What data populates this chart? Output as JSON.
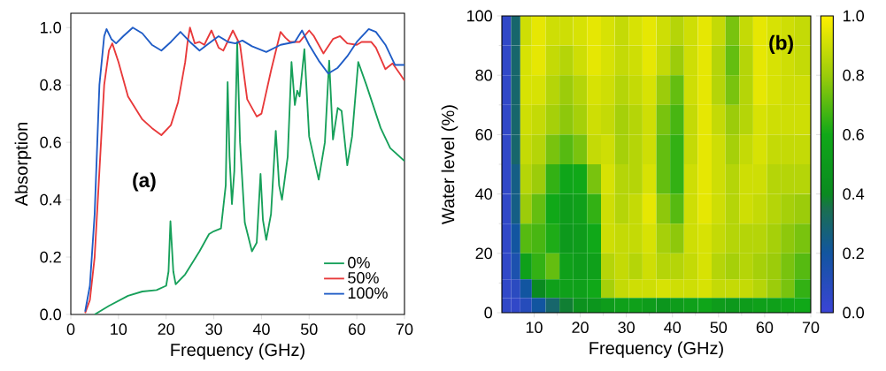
{
  "chart_data": [
    {
      "type": "line",
      "xlabel": "Frequency (GHz)",
      "ylabel": "Absorption",
      "xlim": [
        0,
        70
      ],
      "ylim": [
        0,
        1.05
      ],
      "xticks": [
        0,
        10,
        20,
        30,
        40,
        50,
        60,
        70
      ],
      "yticks": [
        {
          "value": 0,
          "label": "0.0"
        },
        {
          "value": 0.2,
          "label": "0.2"
        },
        {
          "value": 0.4,
          "label": "0.4"
        },
        {
          "value": 0.6,
          "label": "0.6"
        },
        {
          "value": 0.8,
          "label": "0.8"
        },
        {
          "value": 1,
          "label": "1.0"
        }
      ],
      "legend": "bottom right",
      "annotations": [
        "(a)"
      ],
      "series": [
        {
          "name": "0%",
          "color": "#17a05a",
          "x": [
            5,
            8,
            12,
            15,
            18,
            20,
            20.5,
            20.9,
            21.5,
            22,
            24,
            27,
            29,
            30,
            31.5,
            32.5,
            32.9,
            33.3,
            33.8,
            34.3,
            34.9,
            35.5,
            36.5,
            38,
            39,
            39.8,
            40.3,
            41,
            42,
            43,
            43.7,
            44.3,
            45.5,
            46.3,
            47,
            47.5,
            48,
            49,
            50,
            52,
            53.3,
            54.2,
            55,
            56,
            56.8,
            58,
            59,
            60.3,
            62,
            65,
            67,
            70
          ],
          "values": [
            0.0,
            0.03,
            0.065,
            0.08,
            0.085,
            0.1,
            0.15,
            0.325,
            0.15,
            0.105,
            0.14,
            0.22,
            0.28,
            0.29,
            0.3,
            0.45,
            0.81,
            0.55,
            0.385,
            0.5,
            0.95,
            0.6,
            0.32,
            0.22,
            0.25,
            0.49,
            0.33,
            0.26,
            0.35,
            0.64,
            0.45,
            0.4,
            0.55,
            0.88,
            0.73,
            0.78,
            0.76,
            0.925,
            0.62,
            0.47,
            0.6,
            0.885,
            0.61,
            0.72,
            0.71,
            0.52,
            0.62,
            0.88,
            0.8,
            0.65,
            0.58,
            0.535
          ]
        },
        {
          "name": "50%",
          "color": "#e8393a",
          "x": [
            3,
            4,
            5,
            6,
            7,
            8,
            8.7,
            10,
            12,
            15,
            17,
            19,
            21,
            22.5,
            24,
            24.5,
            25,
            26,
            27,
            28,
            29.5,
            31,
            32,
            34,
            35.5,
            37,
            39,
            40,
            42,
            44,
            45,
            46,
            48,
            49,
            50,
            51,
            53,
            55,
            56.5,
            58,
            60,
            61,
            63,
            64,
            66,
            67.5,
            69,
            70
          ],
          "values": [
            0.005,
            0.05,
            0.2,
            0.5,
            0.8,
            0.92,
            0.945,
            0.88,
            0.76,
            0.68,
            0.65,
            0.625,
            0.66,
            0.74,
            0.88,
            0.95,
            1.0,
            0.945,
            0.95,
            0.94,
            0.99,
            0.93,
            0.92,
            0.99,
            0.94,
            0.75,
            0.69,
            0.7,
            0.85,
            0.985,
            0.965,
            0.95,
            0.95,
            0.97,
            0.99,
            0.97,
            0.91,
            0.96,
            0.97,
            0.945,
            0.94,
            0.95,
            0.95,
            0.93,
            0.855,
            0.875,
            0.84,
            0.815
          ]
        },
        {
          "name": "100%",
          "color": "#1f5cc6",
          "x": [
            3,
            4,
            5,
            6,
            7,
            7.5,
            8.5,
            9.5,
            11,
            13,
            15,
            17,
            19,
            21,
            23,
            25,
            27,
            29,
            31,
            33,
            34.5,
            36,
            38,
            41,
            44,
            47,
            48.5,
            50,
            52,
            54,
            56,
            58,
            60,
            62.5,
            64,
            66,
            68,
            70
          ],
          "values": [
            0.01,
            0.1,
            0.35,
            0.8,
            0.97,
            0.995,
            0.96,
            0.945,
            0.97,
            1.0,
            0.98,
            0.94,
            0.92,
            0.95,
            0.985,
            0.95,
            0.92,
            0.945,
            0.97,
            0.95,
            0.945,
            0.955,
            0.935,
            0.915,
            0.94,
            0.95,
            0.99,
            0.94,
            0.885,
            0.84,
            0.86,
            0.9,
            0.95,
            0.995,
            0.985,
            0.94,
            0.87,
            0.87
          ]
        }
      ]
    },
    {
      "type": "heatmap",
      "xlabel": "Frequency (GHz)",
      "ylabel": "Water level (%)",
      "xlim": [
        3,
        70
      ],
      "ylim": [
        0,
        100
      ],
      "xticks": [
        10,
        20,
        30,
        40,
        50,
        60,
        70
      ],
      "yticks": [
        0,
        20,
        40,
        60,
        80,
        100
      ],
      "clim": [
        0,
        1
      ],
      "cticks": [
        {
          "value": 0,
          "label": "0.0"
        },
        {
          "value": 0.2,
          "label": "0.2"
        },
        {
          "value": 0.4,
          "label": "0.4"
        },
        {
          "value": 0.6,
          "label": "0.6"
        },
        {
          "value": 0.8,
          "label": "0.8"
        },
        {
          "value": 1,
          "label": "1.0"
        }
      ],
      "annotations": [
        "(b)"
      ],
      "x": [
        4,
        6,
        8,
        11,
        14,
        17,
        20,
        23,
        26,
        29,
        32,
        35,
        38,
        41,
        44,
        47,
        50,
        53,
        56,
        59,
        62,
        65,
        68
      ],
      "y": [
        95,
        85,
        75,
        65,
        55,
        45,
        35,
        25,
        15,
        7.5,
        2.5
      ],
      "cells": [
        [
          0.05,
          0.3,
          0.9,
          0.95,
          0.9,
          0.9,
          0.92,
          0.95,
          0.92,
          0.88,
          0.92,
          0.95,
          0.9,
          0.85,
          0.9,
          0.95,
          0.88,
          0.75,
          0.88,
          0.95,
          0.92,
          0.9,
          0.88
        ],
        [
          0.05,
          0.3,
          0.92,
          0.95,
          0.88,
          0.85,
          0.9,
          0.95,
          0.92,
          0.88,
          0.9,
          0.95,
          0.88,
          0.8,
          0.9,
          0.95,
          0.85,
          0.72,
          0.85,
          0.95,
          0.92,
          0.9,
          0.88
        ],
        [
          0.05,
          0.3,
          0.92,
          0.92,
          0.85,
          0.8,
          0.85,
          0.92,
          0.9,
          0.85,
          0.88,
          0.92,
          0.8,
          0.72,
          0.9,
          0.95,
          0.85,
          0.75,
          0.85,
          0.95,
          0.92,
          0.9,
          0.9
        ],
        [
          0.05,
          0.3,
          0.9,
          0.88,
          0.82,
          0.78,
          0.82,
          0.9,
          0.88,
          0.82,
          0.85,
          0.9,
          0.75,
          0.68,
          0.88,
          0.95,
          0.88,
          0.8,
          0.85,
          0.92,
          0.9,
          0.9,
          0.9
        ],
        [
          0.05,
          0.3,
          0.88,
          0.85,
          0.75,
          0.7,
          0.75,
          0.88,
          0.9,
          0.82,
          0.85,
          0.9,
          0.72,
          0.65,
          0.88,
          0.95,
          0.9,
          0.82,
          0.88,
          0.92,
          0.88,
          0.88,
          0.88
        ],
        [
          0.05,
          0.25,
          0.85,
          0.8,
          0.65,
          0.58,
          0.6,
          0.75,
          0.92,
          0.85,
          0.85,
          0.92,
          0.72,
          0.65,
          0.9,
          0.95,
          0.9,
          0.85,
          0.9,
          0.9,
          0.85,
          0.85,
          0.85
        ],
        [
          0.05,
          0.25,
          0.8,
          0.72,
          0.6,
          0.52,
          0.55,
          0.65,
          0.9,
          0.85,
          0.88,
          0.95,
          0.78,
          0.7,
          0.9,
          0.95,
          0.9,
          0.85,
          0.9,
          0.88,
          0.85,
          0.82,
          0.8
        ],
        [
          0.05,
          0.2,
          0.7,
          0.68,
          0.62,
          0.5,
          0.52,
          0.6,
          0.9,
          0.88,
          0.88,
          0.92,
          0.82,
          0.78,
          0.9,
          0.92,
          0.88,
          0.85,
          0.85,
          0.85,
          0.82,
          0.78,
          0.75
        ],
        [
          0.05,
          0.15,
          0.55,
          0.65,
          0.72,
          0.55,
          0.52,
          0.55,
          0.85,
          0.88,
          0.85,
          0.9,
          0.85,
          0.85,
          0.88,
          0.92,
          0.85,
          0.82,
          0.85,
          0.82,
          0.8,
          0.75,
          0.7
        ],
        [
          0.05,
          0.08,
          0.2,
          0.4,
          0.55,
          0.55,
          0.55,
          0.6,
          0.82,
          0.88,
          0.9,
          0.9,
          0.92,
          0.9,
          0.9,
          0.92,
          0.88,
          0.88,
          0.88,
          0.85,
          0.8,
          0.75,
          0.65
        ],
        [
          0.05,
          0.05,
          0.1,
          0.2,
          0.3,
          0.38,
          0.45,
          0.48,
          0.52,
          0.55,
          0.55,
          0.52,
          0.48,
          0.52,
          0.55,
          0.58,
          0.52,
          0.5,
          0.52,
          0.55,
          0.55,
          0.58,
          0.6
        ]
      ]
    }
  ]
}
